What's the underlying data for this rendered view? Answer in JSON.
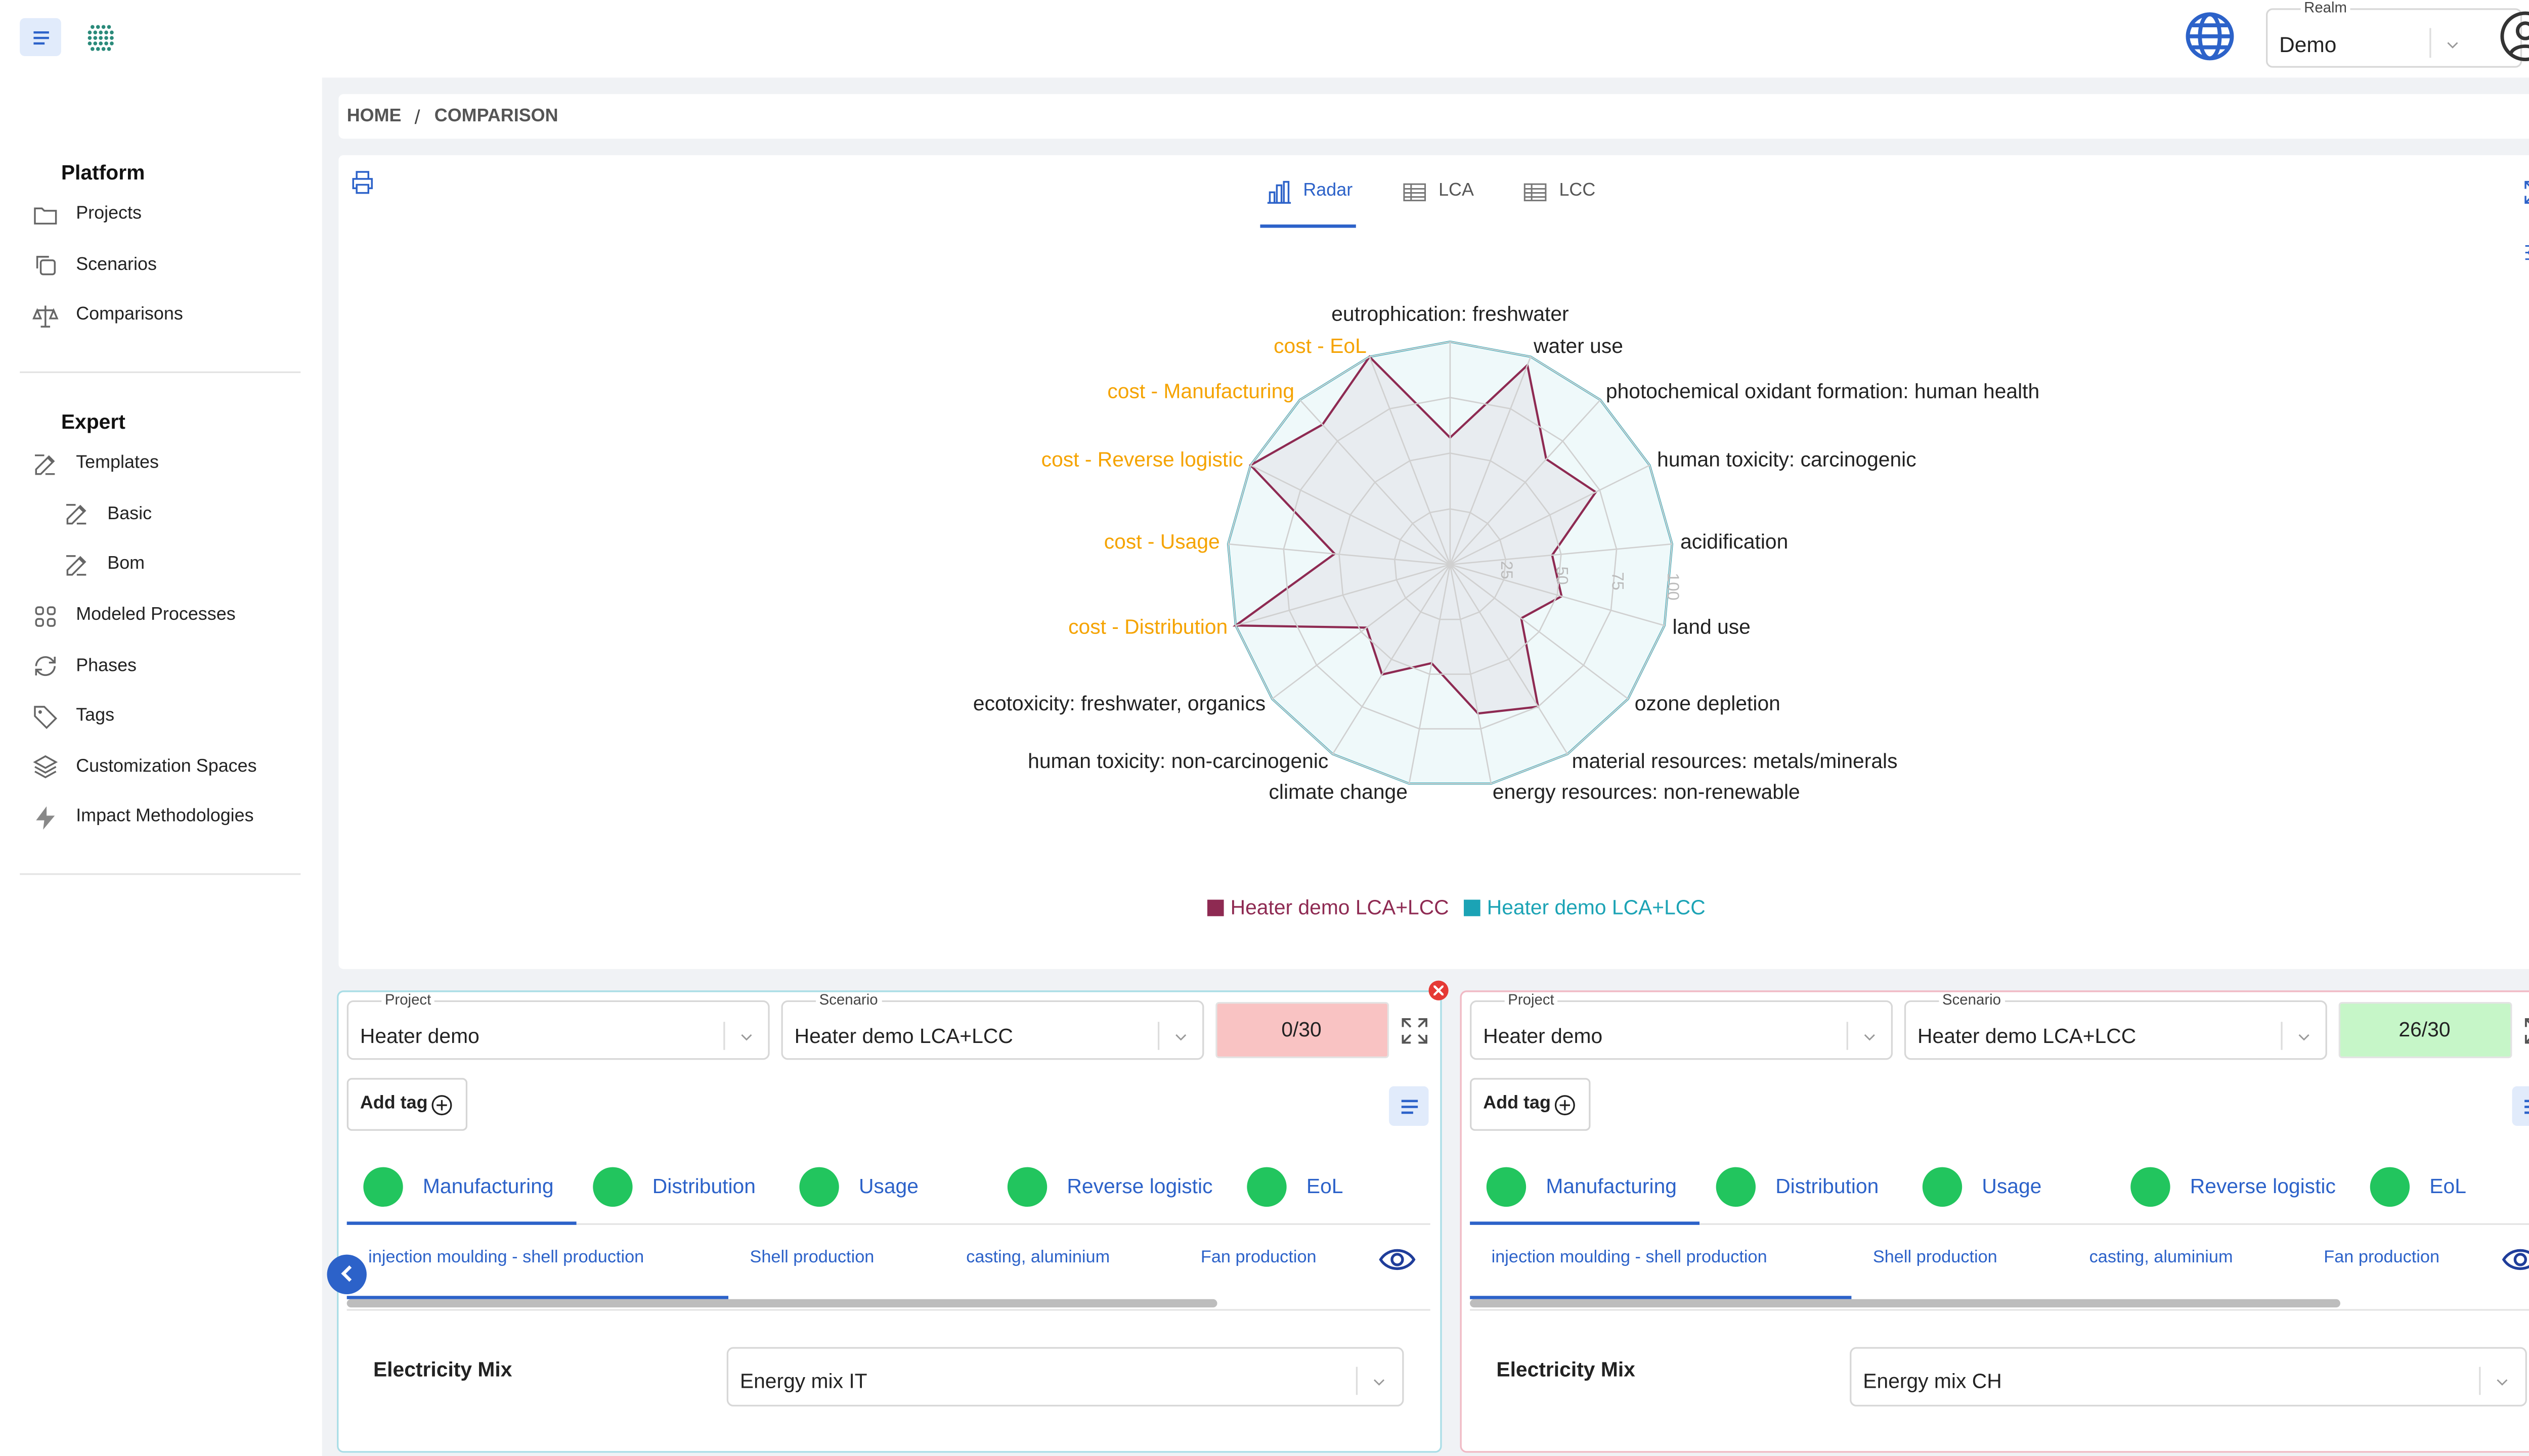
{
  "header": {
    "realm_label": "Realm",
    "realm_value": "Demo"
  },
  "sidebar": {
    "sections": [
      {
        "title": "Platform",
        "items": [
          {
            "label": "Projects"
          },
          {
            "label": "Scenarios"
          },
          {
            "label": "Comparisons"
          }
        ]
      },
      {
        "title": "Expert",
        "items": [
          {
            "label": "Templates",
            "children": [
              "Basic",
              "Bom"
            ]
          },
          {
            "label": "Modeled Processes"
          },
          {
            "label": "Phases"
          },
          {
            "label": "Tags"
          },
          {
            "label": "Customization Spaces"
          },
          {
            "label": "Impact Methodologies"
          }
        ]
      }
    ]
  },
  "breadcrumb": {
    "items": [
      "HOME",
      "COMPARISON"
    ],
    "separator": "/"
  },
  "tabs": [
    "Radar",
    "LCA",
    "LCC"
  ],
  "chart_data": {
    "type": "radar",
    "categories": [
      "eutrophication: freshwater",
      "water use",
      "photochemical oxidant formation: human health",
      "human toxicity: carcinogenic",
      "acidification",
      "land use",
      "ozone depletion",
      "material resources: metals/minerals",
      "energy resources: non-renewable",
      "climate change",
      "human toxicity: non-carcinogenic",
      "ecotoxicity: freshwater, organics",
      "cost - Distribution",
      "cost - Usage",
      "cost - Reverse logistic",
      "cost - Manufacturing",
      "cost - EoL"
    ],
    "category_colors": [
      "#222222",
      "#222222",
      "#222222",
      "#222222",
      "#222222",
      "#222222",
      "#222222",
      "#222222",
      "#222222",
      "#222222",
      "#222222",
      "#222222",
      "#f5a300",
      "#f5a300",
      "#f5a300",
      "#f5a300",
      "#f5a300"
    ],
    "series": [
      {
        "name": "Heater demo LCA+LCC",
        "color": "#8e2a52",
        "values": [
          57,
          96,
          64,
          73,
          46,
          52,
          40,
          75,
          68,
          45,
          58,
          47,
          100,
          52,
          100,
          85,
          100
        ]
      },
      {
        "name": "Heater demo LCA+LCC",
        "color": "#1ba3b5",
        "values": [
          100,
          100,
          100,
          100,
          100,
          100,
          100,
          100,
          100,
          100,
          100,
          100,
          100,
          100,
          100,
          100,
          100
        ]
      }
    ],
    "ylim": [
      0,
      100
    ],
    "yticks": [
      25,
      50,
      75,
      100
    ],
    "grid": true,
    "legend": "bottom"
  },
  "panels": [
    {
      "color": "#a9dde6",
      "project_label": "Project",
      "project": "Heater demo",
      "scenario_label": "Scenario",
      "scenario": "Heater demo LCA+LCC",
      "score": "0/30",
      "score_color": "#f9c3c3",
      "add_tag": "Add tag",
      "phases": [
        "Manufacturing",
        "Distribution",
        "Usage",
        "Reverse logistic",
        "EoL"
      ],
      "processes": [
        "injection moulding - shell production",
        "Shell production",
        "casting, aluminium",
        "Fan production"
      ],
      "setting_label": "Electricity Mix",
      "setting_value": "Energy mix IT"
    },
    {
      "color": "#f0b9c4",
      "project_label": "Project",
      "project": "Heater demo",
      "scenario_label": "Scenario",
      "scenario": "Heater demo LCA+LCC",
      "score": "26/30",
      "score_color": "#c6f6c8",
      "add_tag": "Add tag",
      "phases": [
        "Manufacturing",
        "Distribution",
        "Usage",
        "Reverse logistic",
        "EoL"
      ],
      "processes": [
        "injection moulding - shell production",
        "Shell production",
        "casting, aluminium",
        "Fan production"
      ],
      "setting_label": "Electricity Mix",
      "setting_value": "Energy mix CH"
    }
  ]
}
